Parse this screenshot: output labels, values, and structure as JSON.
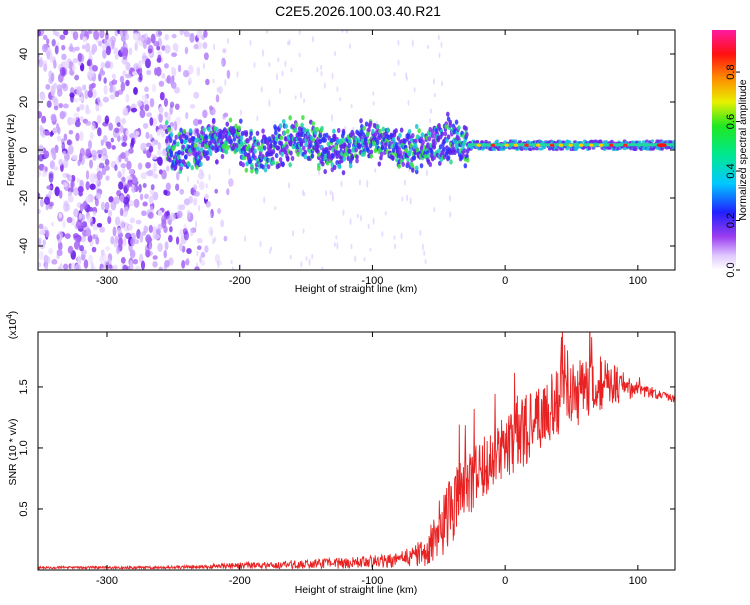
{
  "title": "C2E5.2026.100.03.40.R21",
  "colors": {
    "spectrogram_low": "#d8c8f8",
    "spectrogram_mid": "#7a2cf0",
    "band_core": "#18c8d0",
    "snr_line": "#e82222",
    "axis": "#000000"
  },
  "chart_data": [
    {
      "type": "heatmap",
      "name": "spectrogram",
      "xlabel": "Height of straight line (km)",
      "ylabel": "Frequency (Hz)",
      "xlim": [
        -352,
        128
      ],
      "ylim": [
        -50,
        50
      ],
      "xticks": [
        -300,
        -200,
        -100,
        0,
        100
      ],
      "xtick_labels": [
        "-300",
        "-200",
        "-100",
        "0",
        "100"
      ],
      "yticks": [
        -40,
        -20,
        0,
        20,
        40
      ],
      "ytick_labels": [
        "-40",
        "-20",
        "0",
        "20",
        "40"
      ],
      "colorbar": {
        "label": "Normalized spectral amplitude",
        "range": [
          0.0,
          0.97
        ],
        "ticks": [
          0.0,
          0.2,
          0.4,
          0.6,
          0.8
        ],
        "tick_labels": [
          "0.0",
          "0.2",
          "0.4",
          "0.6",
          "0.8"
        ],
        "colormap": "rainbow (violet-blue-cyan-green-yellow-red-magenta)"
      },
      "features": {
        "noise_region_x": [
          -352,
          -240
        ],
        "band_center_hz": 2,
        "band_start_x": -255,
        "narrow_band_start_x": -28,
        "strong_dots_x": [
          -20,
          100
        ]
      }
    },
    {
      "type": "line",
      "name": "snr",
      "xlabel": "Height of straight line (km)",
      "ylabel": "SNR (10 * v/v)",
      "yscale_label": "(x10",
      "yscale_exponent": "4",
      "xlim": [
        -352,
        128
      ],
      "ylim": [
        0,
        1.95
      ],
      "xticks": [
        -300,
        -200,
        -100,
        0,
        100
      ],
      "xtick_labels": [
        "-300",
        "-200",
        "-100",
        "0",
        "100"
      ],
      "yticks": [
        0.5,
        1.0,
        1.5
      ],
      "ytick_labels": [
        "0.5",
        "1.0",
        "1.5"
      ],
      "envelope": {
        "x": [
          -352,
          -260,
          -220,
          -180,
          -140,
          -110,
          -80,
          -60,
          -50,
          -40,
          -30,
          -20,
          -10,
          0,
          10,
          20,
          30,
          40,
          50,
          60,
          70,
          80,
          90,
          100,
          110,
          128
        ],
        "base": [
          0.02,
          0.02,
          0.03,
          0.04,
          0.05,
          0.06,
          0.08,
          0.15,
          0.3,
          0.5,
          0.65,
          0.8,
          0.9,
          0.98,
          1.08,
          1.2,
          1.3,
          1.38,
          1.45,
          1.5,
          1.52,
          1.52,
          1.5,
          1.48,
          1.45,
          1.4
        ],
        "amp": [
          0.01,
          0.01,
          0.02,
          0.03,
          0.04,
          0.05,
          0.06,
          0.12,
          0.25,
          0.3,
          0.3,
          0.28,
          0.25,
          0.28,
          0.3,
          0.28,
          0.26,
          0.28,
          0.3,
          0.28,
          0.25,
          0.2,
          0.12,
          0.06,
          0.04,
          0.03
        ]
      }
    }
  ]
}
